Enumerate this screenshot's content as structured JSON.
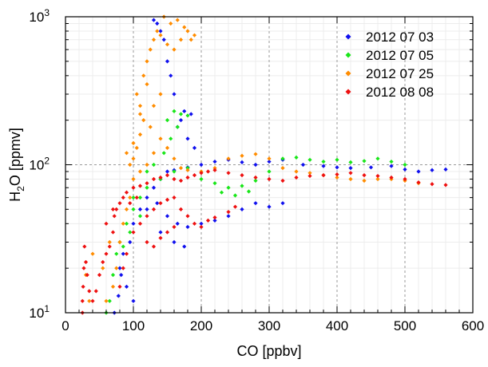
{
  "chart_data": {
    "type": "scatter",
    "title": "",
    "xlabel": "CO [ppbv]",
    "ylabel": {
      "base": "H",
      "sub": "2",
      "rest": "O [ppmv]"
    },
    "xlim": [
      0,
      600
    ],
    "ylim": [
      10,
      1000
    ],
    "yscale": "log",
    "grid": true,
    "legend_position": "top-right",
    "x_ticks": [
      "0",
      "100",
      "200",
      "300",
      "400",
      "500",
      "600"
    ],
    "y_ticks": [
      {
        "value": 10,
        "base": "10",
        "exp": "1"
      },
      {
        "value": 100,
        "base": "10",
        "exp": "2"
      },
      {
        "value": 1000,
        "base": "10",
        "exp": "3"
      }
    ],
    "series": [
      {
        "name": "2012 07 03",
        "color": "#1010ee",
        "points": [
          [
            72,
            10
          ],
          [
            78,
            13
          ],
          [
            82,
            18
          ],
          [
            85,
            25
          ],
          [
            95,
            30
          ],
          [
            100,
            40
          ],
          [
            110,
            50
          ],
          [
            120,
            60
          ],
          [
            130,
            70
          ],
          [
            140,
            80
          ],
          [
            150,
            90
          ],
          [
            160,
            92
          ],
          [
            180,
            96
          ],
          [
            200,
            100
          ],
          [
            220,
            105
          ],
          [
            240,
            108
          ],
          [
            260,
            104
          ],
          [
            280,
            100
          ],
          [
            300,
            105
          ],
          [
            320,
            108
          ],
          [
            350,
            100
          ],
          [
            380,
            98
          ],
          [
            400,
            96
          ],
          [
            420,
            95
          ],
          [
            450,
            96
          ],
          [
            480,
            98
          ],
          [
            500,
            93
          ],
          [
            520,
            90
          ],
          [
            540,
            92
          ],
          [
            560,
            93
          ],
          [
            120,
            50
          ],
          [
            135,
            55
          ],
          [
            150,
            45
          ],
          [
            165,
            40
          ],
          [
            180,
            38
          ],
          [
            200,
            40
          ],
          [
            220,
            42
          ],
          [
            240,
            45
          ],
          [
            260,
            50
          ],
          [
            280,
            55
          ],
          [
            300,
            52
          ],
          [
            320,
            55
          ],
          [
            140,
            35
          ],
          [
            160,
            30
          ],
          [
            175,
            28
          ],
          [
            130,
            950
          ],
          [
            135,
            900
          ],
          [
            140,
            800
          ],
          [
            150,
            500
          ],
          [
            160,
            300
          ],
          [
            170,
            200
          ],
          [
            180,
            150
          ],
          [
            190,
            130
          ],
          [
            165,
            180
          ],
          [
            175,
            230
          ],
          [
            185,
            220
          ],
          [
            145,
            700
          ],
          [
            155,
            400
          ],
          [
            80,
            20
          ],
          [
            90,
            15
          ],
          [
            100,
            12
          ]
        ]
      },
      {
        "name": "2012 07 05",
        "color": "#19e619",
        "points": [
          [
            60,
            10
          ],
          [
            65,
            12
          ],
          [
            70,
            18
          ],
          [
            75,
            25
          ],
          [
            80,
            30
          ],
          [
            90,
            40
          ],
          [
            100,
            50
          ],
          [
            110,
            60
          ],
          [
            120,
            70
          ],
          [
            140,
            80
          ],
          [
            160,
            90
          ],
          [
            180,
            95
          ],
          [
            200,
            80
          ],
          [
            220,
            75
          ],
          [
            240,
            70
          ],
          [
            260,
            72
          ],
          [
            280,
            78
          ],
          [
            300,
            90
          ],
          [
            320,
            110
          ],
          [
            340,
            112
          ],
          [
            360,
            108
          ],
          [
            380,
            105
          ],
          [
            400,
            108
          ],
          [
            420,
            104
          ],
          [
            440,
            106
          ],
          [
            460,
            110
          ],
          [
            480,
            105
          ],
          [
            500,
            100
          ],
          [
            230,
            65
          ],
          [
            250,
            62
          ],
          [
            270,
            66
          ],
          [
            150,
            200
          ],
          [
            160,
            230
          ],
          [
            170,
            220
          ],
          [
            180,
            215
          ],
          [
            165,
            180
          ],
          [
            155,
            150
          ],
          [
            145,
            120
          ],
          [
            130,
            100
          ],
          [
            120,
            90
          ],
          [
            100,
            60
          ],
          [
            110,
            45
          ],
          [
            95,
            35
          ],
          [
            85,
            28
          ]
        ]
      },
      {
        "name": "2012 07 25",
        "color": "#ff8c00",
        "points": [
          [
            105,
            300
          ],
          [
            110,
            250
          ],
          [
            115,
            400
          ],
          [
            120,
            500
          ],
          [
            125,
            600
          ],
          [
            130,
            700
          ],
          [
            135,
            800
          ],
          [
            140,
            750
          ],
          [
            150,
            650
          ],
          [
            160,
            600
          ],
          [
            170,
            700
          ],
          [
            180,
            800
          ],
          [
            190,
            750
          ],
          [
            145,
            1000
          ],
          [
            155,
            900
          ],
          [
            165,
            950
          ],
          [
            175,
            850
          ],
          [
            185,
            700
          ],
          [
            125,
            180
          ],
          [
            115,
            200
          ],
          [
            110,
            160
          ],
          [
            100,
            140
          ],
          [
            100,
            110
          ],
          [
            110,
            90
          ],
          [
            120,
            100
          ],
          [
            130,
            120
          ],
          [
            140,
            150
          ],
          [
            150,
            130
          ],
          [
            160,
            110
          ],
          [
            170,
            95
          ],
          [
            180,
            92
          ],
          [
            200,
            90
          ],
          [
            220,
            95
          ],
          [
            240,
            110
          ],
          [
            260,
            115
          ],
          [
            280,
            118
          ],
          [
            300,
            110
          ],
          [
            320,
            95
          ],
          [
            340,
            90
          ],
          [
            360,
            88
          ],
          [
            380,
            85
          ],
          [
            400,
            82
          ],
          [
            420,
            80
          ],
          [
            440,
            78
          ],
          [
            460,
            80
          ],
          [
            480,
            80
          ],
          [
            500,
            78
          ],
          [
            520,
            75
          ],
          [
            130,
            250
          ],
          [
            140,
            300
          ],
          [
            120,
            350
          ],
          [
            110,
            220
          ],
          [
            105,
            130
          ],
          [
            95,
            100
          ],
          [
            90,
            120
          ],
          [
            100,
            80
          ],
          [
            95,
            60
          ],
          [
            90,
            50
          ],
          [
            85,
            40
          ],
          [
            80,
            30
          ],
          [
            75,
            20
          ],
          [
            70,
            15
          ],
          [
            60,
            12
          ],
          [
            35,
            12
          ],
          [
            30,
            18
          ],
          [
            40,
            25
          ],
          [
            65,
            30
          ],
          [
            55,
            20
          ]
        ]
      },
      {
        "name": "2012 08 08",
        "color": "#ee1010",
        "points": [
          [
            25,
            10
          ],
          [
            25,
            12
          ],
          [
            26,
            15
          ],
          [
            27,
            20
          ],
          [
            28,
            28
          ],
          [
            30,
            22
          ],
          [
            32,
            18
          ],
          [
            35,
            14
          ],
          [
            40,
            12
          ],
          [
            45,
            14
          ],
          [
            50,
            18
          ],
          [
            55,
            22
          ],
          [
            60,
            25
          ],
          [
            65,
            28
          ],
          [
            70,
            35
          ],
          [
            72,
            45
          ],
          [
            75,
            50
          ],
          [
            80,
            55
          ],
          [
            85,
            60
          ],
          [
            90,
            65
          ],
          [
            100,
            70
          ],
          [
            110,
            72
          ],
          [
            120,
            75
          ],
          [
            130,
            80
          ],
          [
            140,
            82
          ],
          [
            150,
            85
          ],
          [
            160,
            80
          ],
          [
            170,
            78
          ],
          [
            180,
            82
          ],
          [
            190,
            85
          ],
          [
            200,
            88
          ],
          [
            210,
            90
          ],
          [
            220,
            92
          ],
          [
            240,
            88
          ],
          [
            260,
            85
          ],
          [
            280,
            82
          ],
          [
            300,
            80
          ],
          [
            320,
            78
          ],
          [
            340,
            82
          ],
          [
            360,
            84
          ],
          [
            380,
            85
          ],
          [
            400,
            86
          ],
          [
            420,
            88
          ],
          [
            440,
            85
          ],
          [
            460,
            84
          ],
          [
            480,
            82
          ],
          [
            500,
            80
          ],
          [
            520,
            76
          ],
          [
            540,
            74
          ],
          [
            560,
            73
          ],
          [
            80,
            15
          ],
          [
            85,
            20
          ],
          [
            90,
            25
          ],
          [
            100,
            35
          ],
          [
            110,
            40
          ],
          [
            120,
            45
          ],
          [
            130,
            50
          ],
          [
            140,
            55
          ],
          [
            150,
            58
          ],
          [
            160,
            60
          ],
          [
            170,
            50
          ],
          [
            180,
            45
          ],
          [
            190,
            40
          ],
          [
            200,
            38
          ],
          [
            210,
            42
          ],
          [
            220,
            44
          ],
          [
            240,
            48
          ],
          [
            250,
            52
          ],
          [
            120,
            30
          ],
          [
            130,
            28
          ],
          [
            140,
            32
          ],
          [
            150,
            35
          ],
          [
            160,
            38
          ],
          [
            60,
            40
          ],
          [
            70,
            50
          ],
          [
            95,
            55
          ],
          [
            105,
            60
          ]
        ]
      }
    ]
  }
}
